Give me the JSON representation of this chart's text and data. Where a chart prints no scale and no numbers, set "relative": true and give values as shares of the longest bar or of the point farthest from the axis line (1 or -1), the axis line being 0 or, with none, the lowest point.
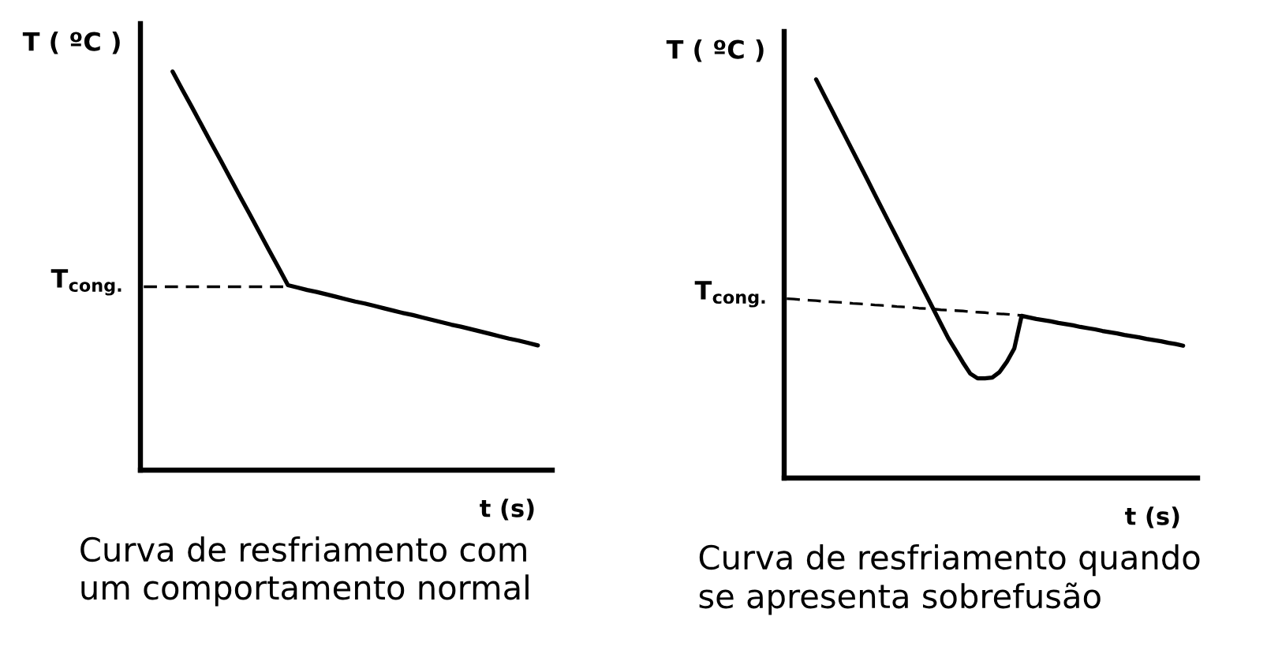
{
  "chart_data": [
    {
      "type": "line",
      "title": "Curva de resfriamento com\num comportamento normal",
      "xlabel": "t (s)",
      "ylabel": "T ( ºC )",
      "relative": true,
      "categories": [
        null,
        null,
        null,
        null,
        null,
        null,
        null,
        null,
        null,
        null,
        null,
        null,
        null,
        null,
        null,
        null,
        null,
        null,
        null,
        null,
        null,
        null,
        null,
        null,
        null,
        null,
        null,
        null,
        null,
        null,
        null,
        null,
        null,
        null,
        null,
        null,
        null,
        null,
        null,
        null,
        null,
        null
      ],
      "series": [
        {
          "color": "#000000",
          "values": [
            null,
            null,
            null,
            1.0,
            0.955,
            0.911,
            0.866,
            0.821,
            0.777,
            0.732,
            0.687,
            0.643,
            0.598,
            0.553,
            0.509,
            0.464,
            0.458,
            0.452,
            0.447,
            0.441,
            0.435,
            0.429,
            0.423,
            0.418,
            0.412,
            0.406,
            0.4,
            0.394,
            0.389,
            0.383,
            0.377,
            0.371,
            0.365,
            0.36,
            0.354,
            0.348,
            0.342,
            0.336,
            0.33,
            0.325,
            0.319,
            0.313
          ]
        },
        {
          "color": "#000000",
          "line_style": "dashed",
          "values": [
            0.46,
            0.46,
            0.46,
            0.46,
            0.46,
            0.46,
            0.46,
            0.46,
            0.46,
            0.46,
            0.46,
            0.46,
            0.46,
            0.46,
            0.46,
            0.46,
            null,
            null,
            null,
            null,
            null,
            null,
            null,
            null,
            null,
            null,
            null,
            null,
            null,
            null,
            null,
            null,
            null,
            null,
            null,
            null,
            null,
            null,
            null,
            null,
            null,
            null
          ]
        }
      ],
      "annotations": [
        "T$_{cong.}$"
      ]
    },
    {
      "type": "line",
      "title": "Curva de resfriamento quando\nse apresenta sobrefusão",
      "xlabel": "t (s)",
      "ylabel": "T ( ºC )",
      "relative": true,
      "categories": [
        null,
        null,
        null,
        null,
        null,
        null,
        null,
        null,
        null,
        null,
        null,
        null,
        null,
        null,
        null,
        null,
        null,
        null,
        null,
        null,
        null,
        null,
        null,
        null,
        null,
        null,
        null,
        null,
        null,
        null,
        null,
        null,
        null,
        null,
        null,
        null,
        null,
        null,
        null,
        null,
        null,
        null,
        null,
        null,
        null,
        null,
        null,
        null,
        null,
        null,
        null,
        null,
        null,
        null,
        null
      ],
      "series": [
        {
          "color": "#000000",
          "values": [
            null,
            null,
            null,
            null,
            1.0,
            0.964,
            0.928,
            0.892,
            0.856,
            0.82,
            0.784,
            0.748,
            0.711,
            0.675,
            0.639,
            0.603,
            0.567,
            0.531,
            0.495,
            0.459,
            0.423,
            0.387,
            0.351,
            0.321,
            0.29,
            0.262,
            0.25,
            0.25,
            0.252,
            0.266,
            0.292,
            0.325,
            0.407,
            0.403,
            0.399,
            0.396,
            0.393,
            0.389,
            0.386,
            0.383,
            0.379,
            0.376,
            0.373,
            0.369,
            0.366,
            0.363,
            0.359,
            0.356,
            0.353,
            0.349,
            0.346,
            0.343,
            0.339,
            0.336,
            0.332
          ]
        },
        {
          "color": "#000000",
          "line_style": "dashed",
          "values": [
            0.45,
            0.449,
            0.447,
            0.446,
            0.445,
            0.443,
            0.442,
            0.441,
            0.44,
            0.438,
            0.437,
            0.436,
            0.434,
            0.433,
            0.432,
            0.43,
            0.429,
            0.428,
            0.426,
            0.425,
            0.424,
            0.422,
            0.421,
            0.42,
            0.419,
            0.417,
            0.416,
            0.415,
            0.413,
            0.412,
            0.411,
            0.409,
            0.408,
            null,
            null,
            null,
            null,
            null,
            null,
            null,
            null,
            null,
            null,
            null,
            null,
            null,
            null,
            null,
            null,
            null,
            null,
            null,
            null,
            null,
            null
          ]
        }
      ],
      "annotations": [
        "T$_{cong.}$"
      ]
    }
  ]
}
